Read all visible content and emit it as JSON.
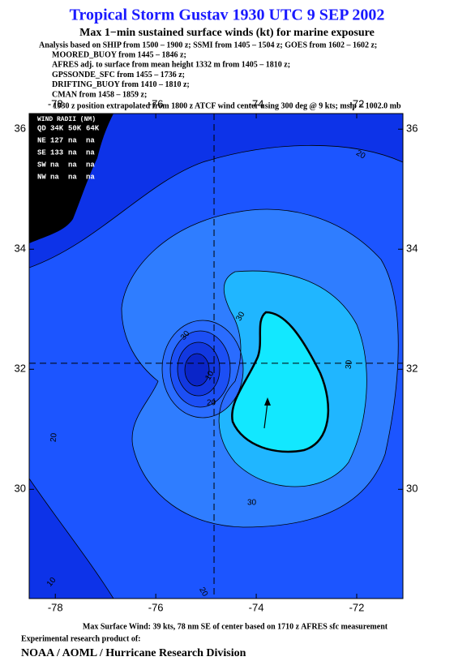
{
  "header": {
    "title": "Tropical Storm Gustav 1930 UTC 9 SEP 2002",
    "subtitle": "Max 1−min sustained surface winds (kt) for marine exposure",
    "notes": [
      "Analysis based on  SHIP from 1500 – 1900 z;  SSMI from 1405 – 1504 z;  GOES from 1602 – 1602 z;",
      "MOORED_BUOY from 1445 – 1846 z;",
      "AFRES adj. to surface from mean height 1332 m from 1405 – 1810 z;",
      "GPSSONDE_SFC from 1455 – 1736 z;",
      "DRIFTING_BUOY from 1410 – 1810 z;",
      "CMAN from 1458 – 1859 z;"
    ],
    "position_note": "1930 z position extrapolated from 1800 z ATCF wind center using 300 deg @ 9 kts; mslp = 1002.0 mb"
  },
  "map": {
    "xlim": [
      -78.52,
      -71.08
    ],
    "ylim": [
      28.18,
      36.26
    ],
    "xticks": [
      -78,
      -76,
      -74,
      -72
    ],
    "yticks": [
      30,
      32,
      34,
      36
    ],
    "center": {
      "lon": -74.84,
      "lat": 32.1
    },
    "wind_radii": {
      "title": "WIND RADII (NM)",
      "header": [
        "QD",
        "34K",
        "50K",
        "64K"
      ],
      "rows": [
        [
          "NE",
          "127",
          "na",
          "na"
        ],
        [
          "SE",
          "133",
          "na",
          "na"
        ],
        [
          "SW",
          "na",
          "na",
          "na"
        ],
        [
          "NW",
          "na",
          "na",
          "na"
        ]
      ]
    },
    "contour_labels": [
      "20",
      "30",
      "30",
      "30",
      "10",
      "20",
      "20",
      "10",
      "20",
      "30"
    ]
  },
  "footer": {
    "max_wind": "Max Surface Wind: 39 kts, 78 nm SE of center based on 1710 z AFRES sfc measurement",
    "credit": "Experimental research product of:",
    "org": "NOAA / AOML / Hurricane Research Division"
  }
}
